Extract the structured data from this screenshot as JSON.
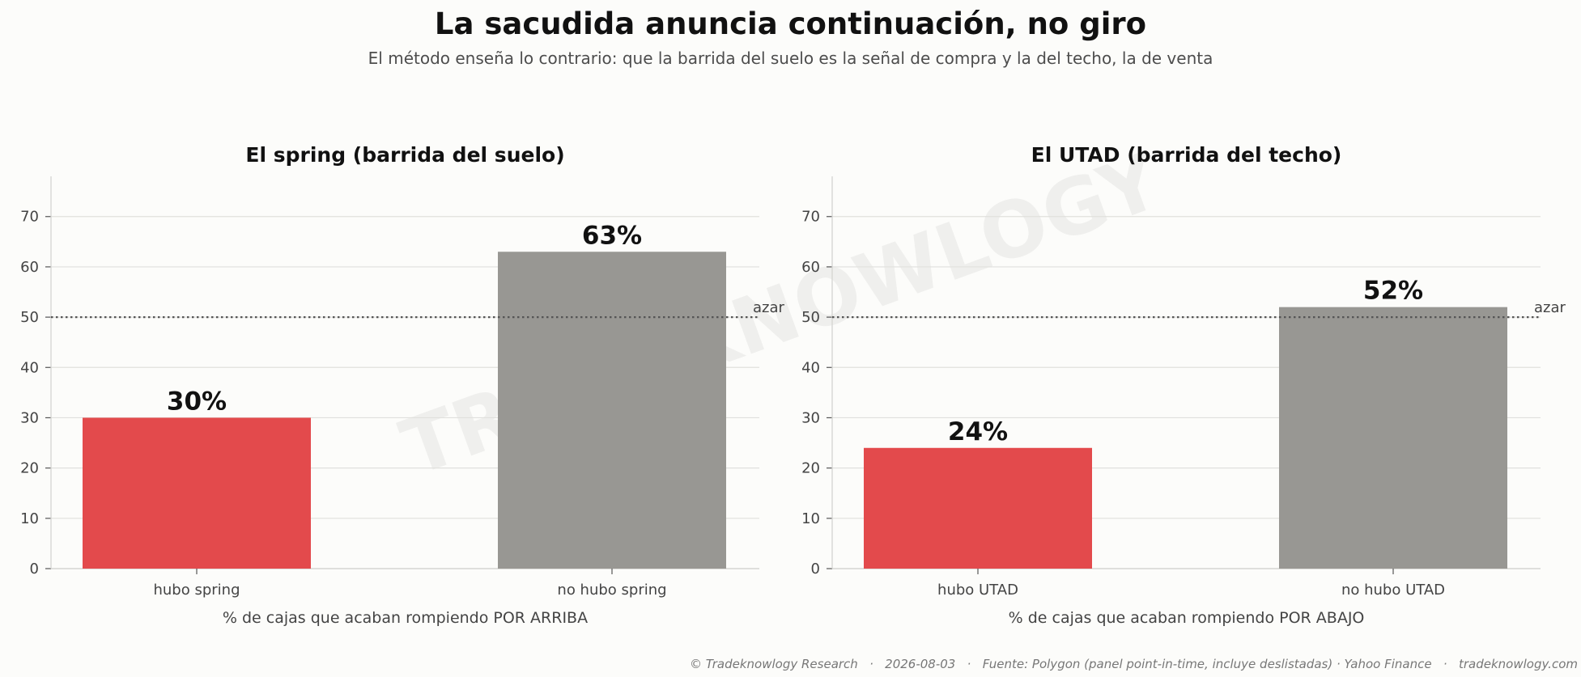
{
  "title": "La sacudida anuncia continuación, no giro",
  "subtitle": "El método enseña lo contrario: que la barrida del suelo es la señal de compra y la del techo, la de venta",
  "watermark": "TRADEKNOWLOGY",
  "footer": "© Tradeknowlogy Research   ·   2026-08-03   ·   Fuente: Polygon (panel point-in-time, incluye deslistadas) · Yahoo Finance   ·   tradeknowlogy.com",
  "colors": {
    "signal": "#e34a4c",
    "no_signal": "#989793",
    "reference": "#555555"
  },
  "chart_data": [
    {
      "type": "bar",
      "title": "El spring (barrida del suelo)",
      "categories": [
        "hubo spring",
        "no hubo spring"
      ],
      "values": [
        30,
        63
      ],
      "value_labels": [
        "30%",
        "63%"
      ],
      "xlabel": "% de cajas que acaban rompiendo POR ARRIBA",
      "ylabel": "",
      "ylim": [
        0,
        78
      ],
      "yticks": [
        0,
        10,
        20,
        30,
        40,
        50,
        60,
        70
      ],
      "reference_line": {
        "value": 50,
        "label": "azar"
      },
      "grid": true
    },
    {
      "type": "bar",
      "title": "El UTAD (barrida del techo)",
      "categories": [
        "hubo UTAD",
        "no hubo UTAD"
      ],
      "values": [
        24,
        52
      ],
      "value_labels": [
        "24%",
        "52%"
      ],
      "xlabel": "% de cajas que acaban rompiendo POR ABAJO",
      "ylabel": "",
      "ylim": [
        0,
        78
      ],
      "yticks": [
        0,
        10,
        20,
        30,
        40,
        50,
        60,
        70
      ],
      "reference_line": {
        "value": 50,
        "label": "azar"
      },
      "grid": true
    }
  ]
}
